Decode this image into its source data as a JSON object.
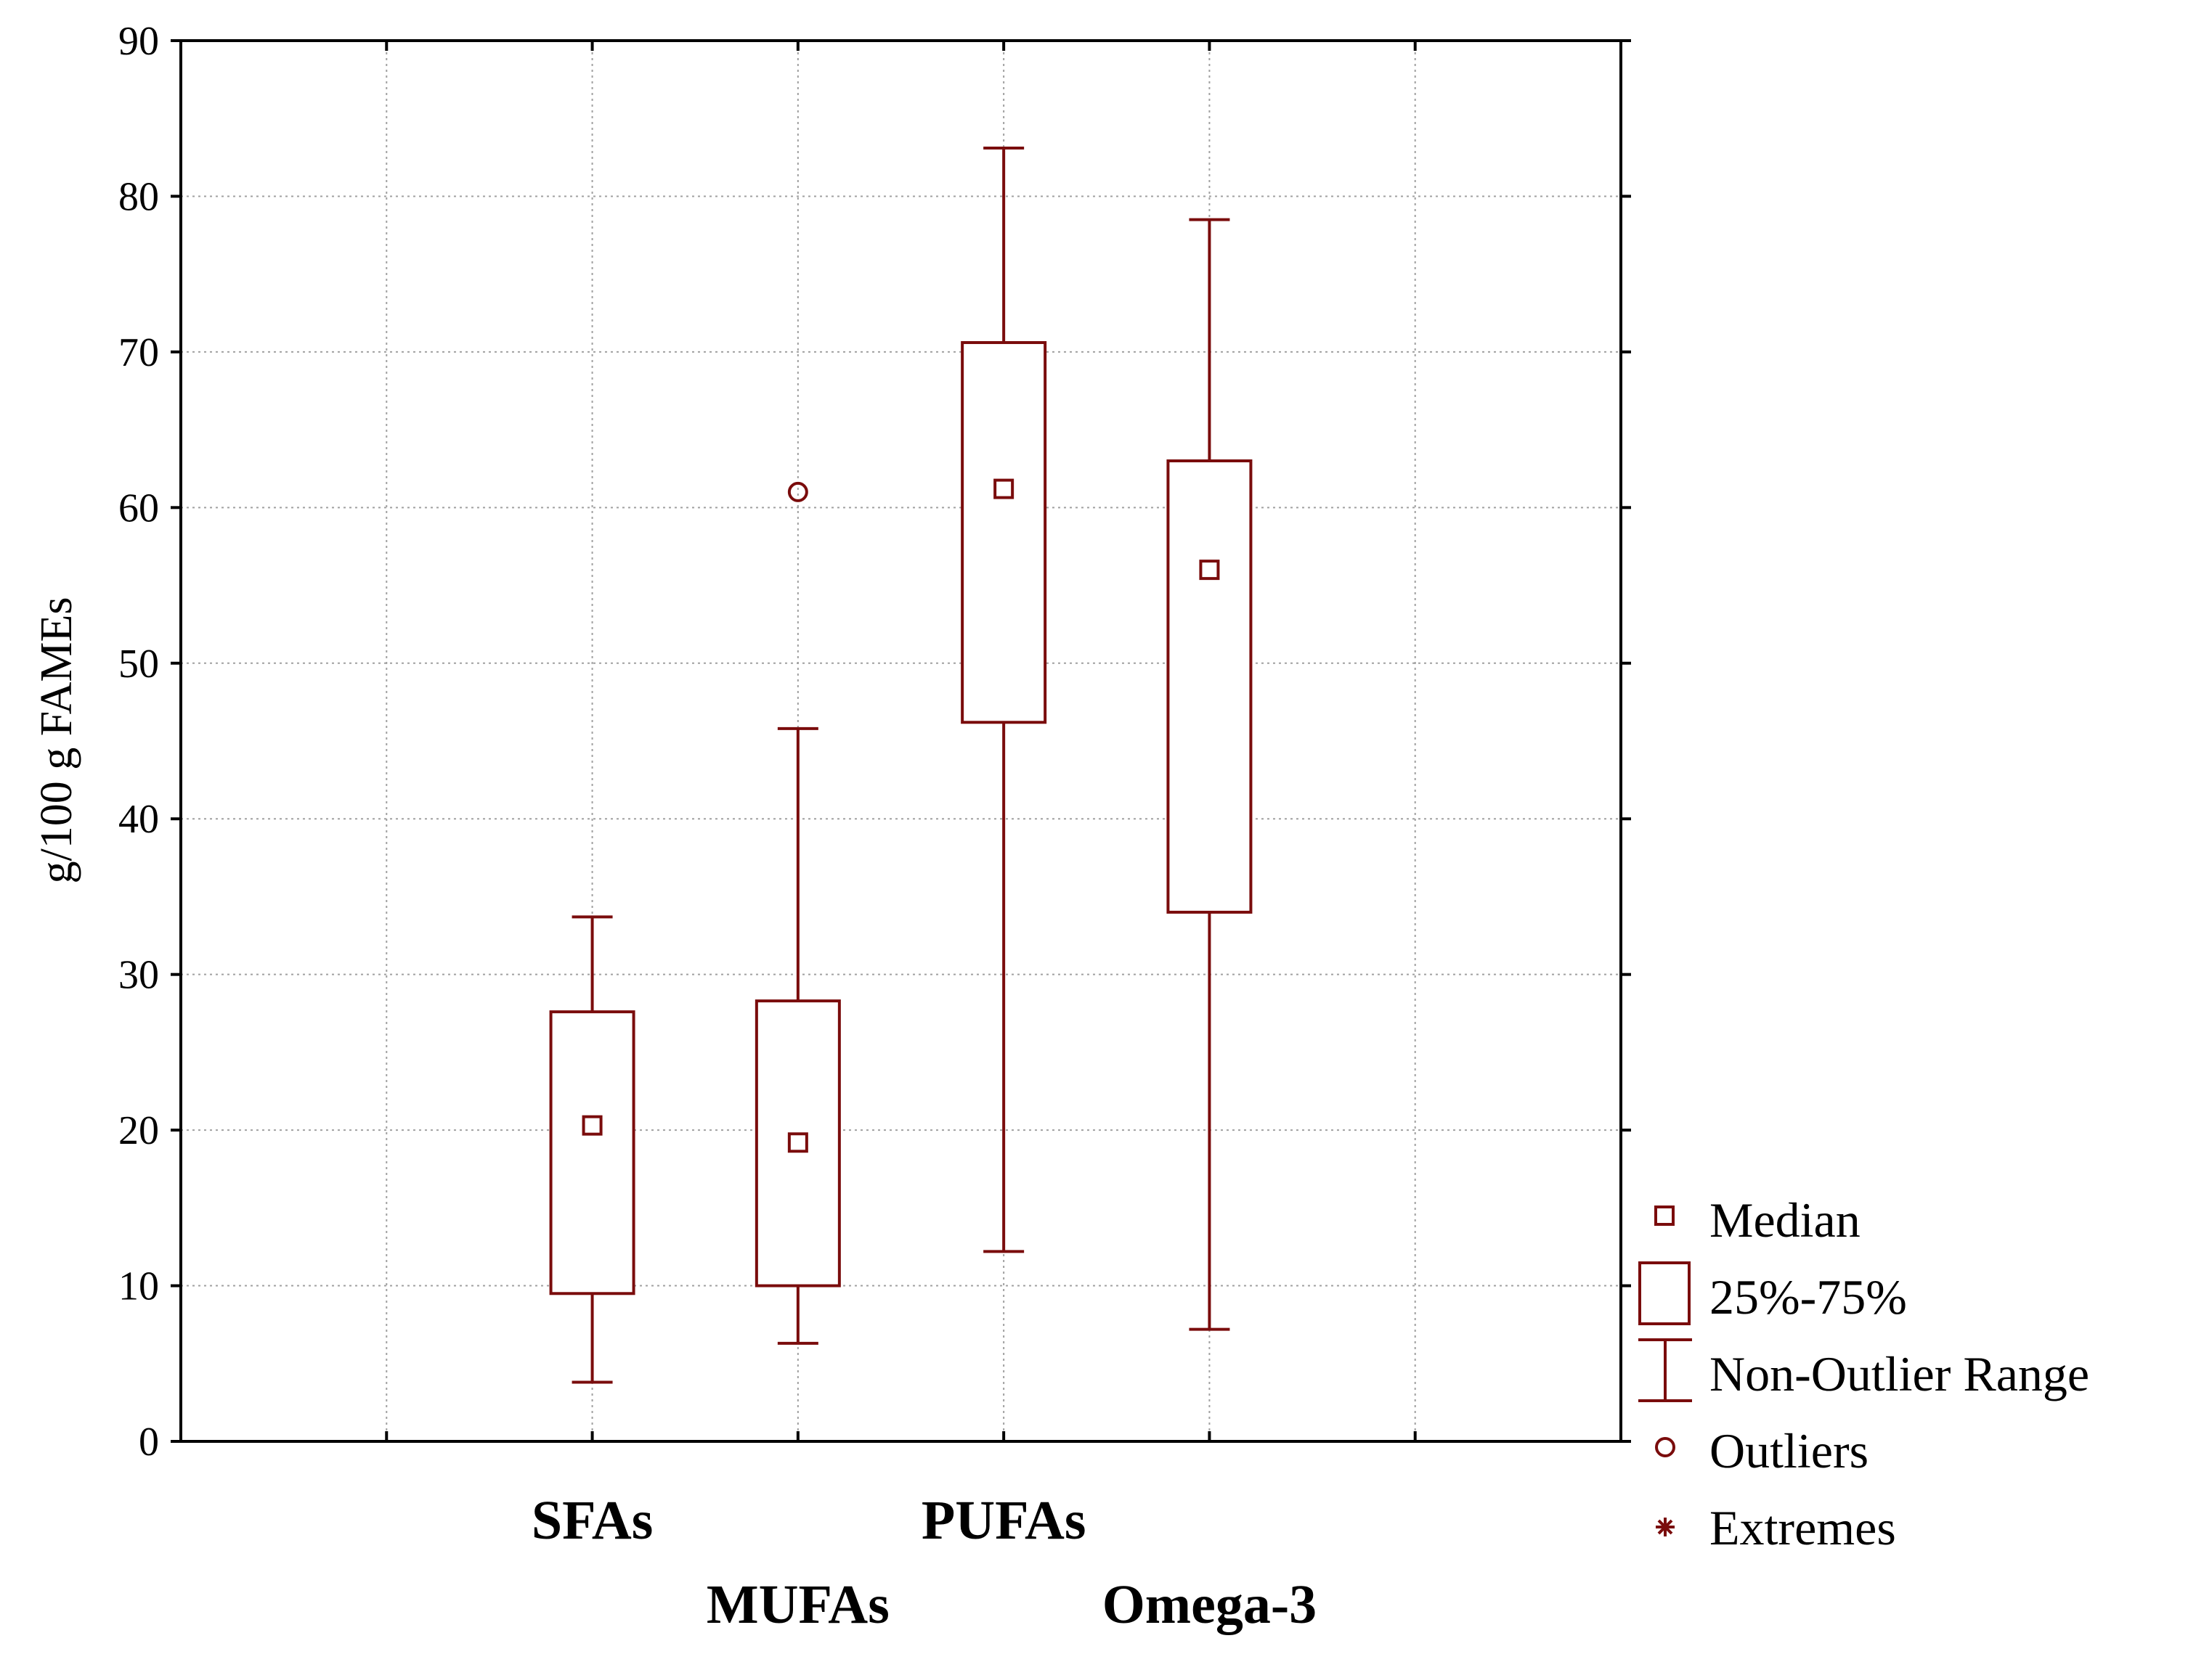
{
  "colors": {
    "series": "#7a0c0c",
    "grid": "#a0a0a0",
    "axis": "#000000"
  },
  "legend": {
    "median": "Median",
    "box": "25%-75%",
    "range": "Non-Outlier Range",
    "outliers": "Outliers",
    "extremes": "Extremes"
  },
  "chart_data": {
    "type": "box",
    "title": "",
    "xlabel": "",
    "ylabel": "g/100 g FAMEs",
    "ylim": [
      0,
      90
    ],
    "yticks": [
      0,
      10,
      20,
      30,
      40,
      50,
      60,
      70,
      80,
      90
    ],
    "grid": true,
    "legend_position": "right-bottom",
    "categories": [
      "SFAs",
      "MUFAs",
      "PUFAs",
      "Omega-3"
    ],
    "series": [
      {
        "name": "SFAs",
        "min": 3.8,
        "q1": 9.5,
        "median": 20.3,
        "q3": 27.6,
        "max": 33.7,
        "outliers": [],
        "extremes": []
      },
      {
        "name": "MUFAs",
        "min": 6.3,
        "q1": 10.0,
        "median": 19.2,
        "q3": 28.3,
        "max": 45.8,
        "outliers": [
          61.0
        ],
        "extremes": []
      },
      {
        "name": "PUFAs",
        "min": 12.2,
        "q1": 46.2,
        "median": 61.2,
        "q3": 70.6,
        "max": 83.1,
        "outliers": [],
        "extremes": []
      },
      {
        "name": "Omega-3",
        "min": 7.2,
        "q1": 34.0,
        "median": 56.0,
        "q3": 63.0,
        "max": 78.5,
        "outliers": [],
        "extremes": []
      }
    ]
  }
}
